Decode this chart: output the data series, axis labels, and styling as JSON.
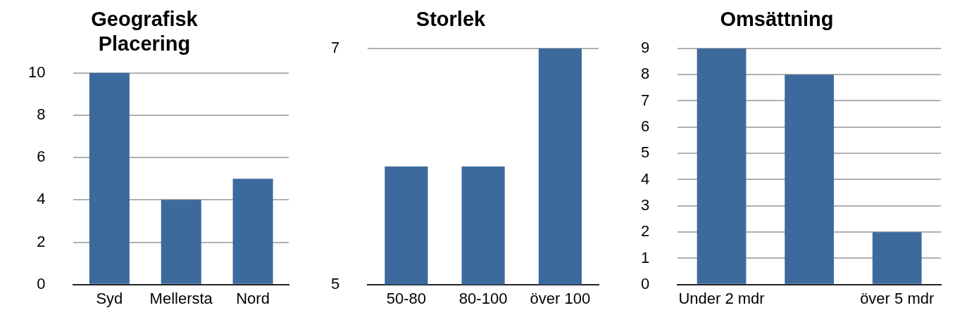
{
  "chart_data": [
    {
      "type": "bar",
      "title": "Geografisk Placering",
      "categories": [
        "Syd",
        "Mellersta",
        "Nord"
      ],
      "values": [
        10,
        4,
        5
      ],
      "color": "#3d6a9c",
      "ylim": [
        0,
        10
      ],
      "yticks": [
        0,
        2,
        4,
        6,
        8,
        10
      ],
      "grid": "y",
      "legend": false
    },
    {
      "type": "bar",
      "title": "Storlek",
      "categories": [
        "50-80",
        "80-100",
        "över 100"
      ],
      "values": [
        6,
        6,
        7
      ],
      "color": "#3d6a9c",
      "ylim": [
        5,
        7
      ],
      "yticks": [
        5,
        7
      ],
      "grid": "y",
      "legend": false
    },
    {
      "type": "bar",
      "title": "Omsättning",
      "categories": [
        "Under 2 mdr",
        null,
        "över 5 mdr"
      ],
      "values": [
        9,
        8,
        2
      ],
      "color": "#3d6a9c",
      "ylim": [
        0,
        9
      ],
      "yticks": [
        0,
        1,
        2,
        3,
        4,
        5,
        6,
        7,
        8,
        9
      ],
      "grid": "y",
      "legend": false
    }
  ]
}
